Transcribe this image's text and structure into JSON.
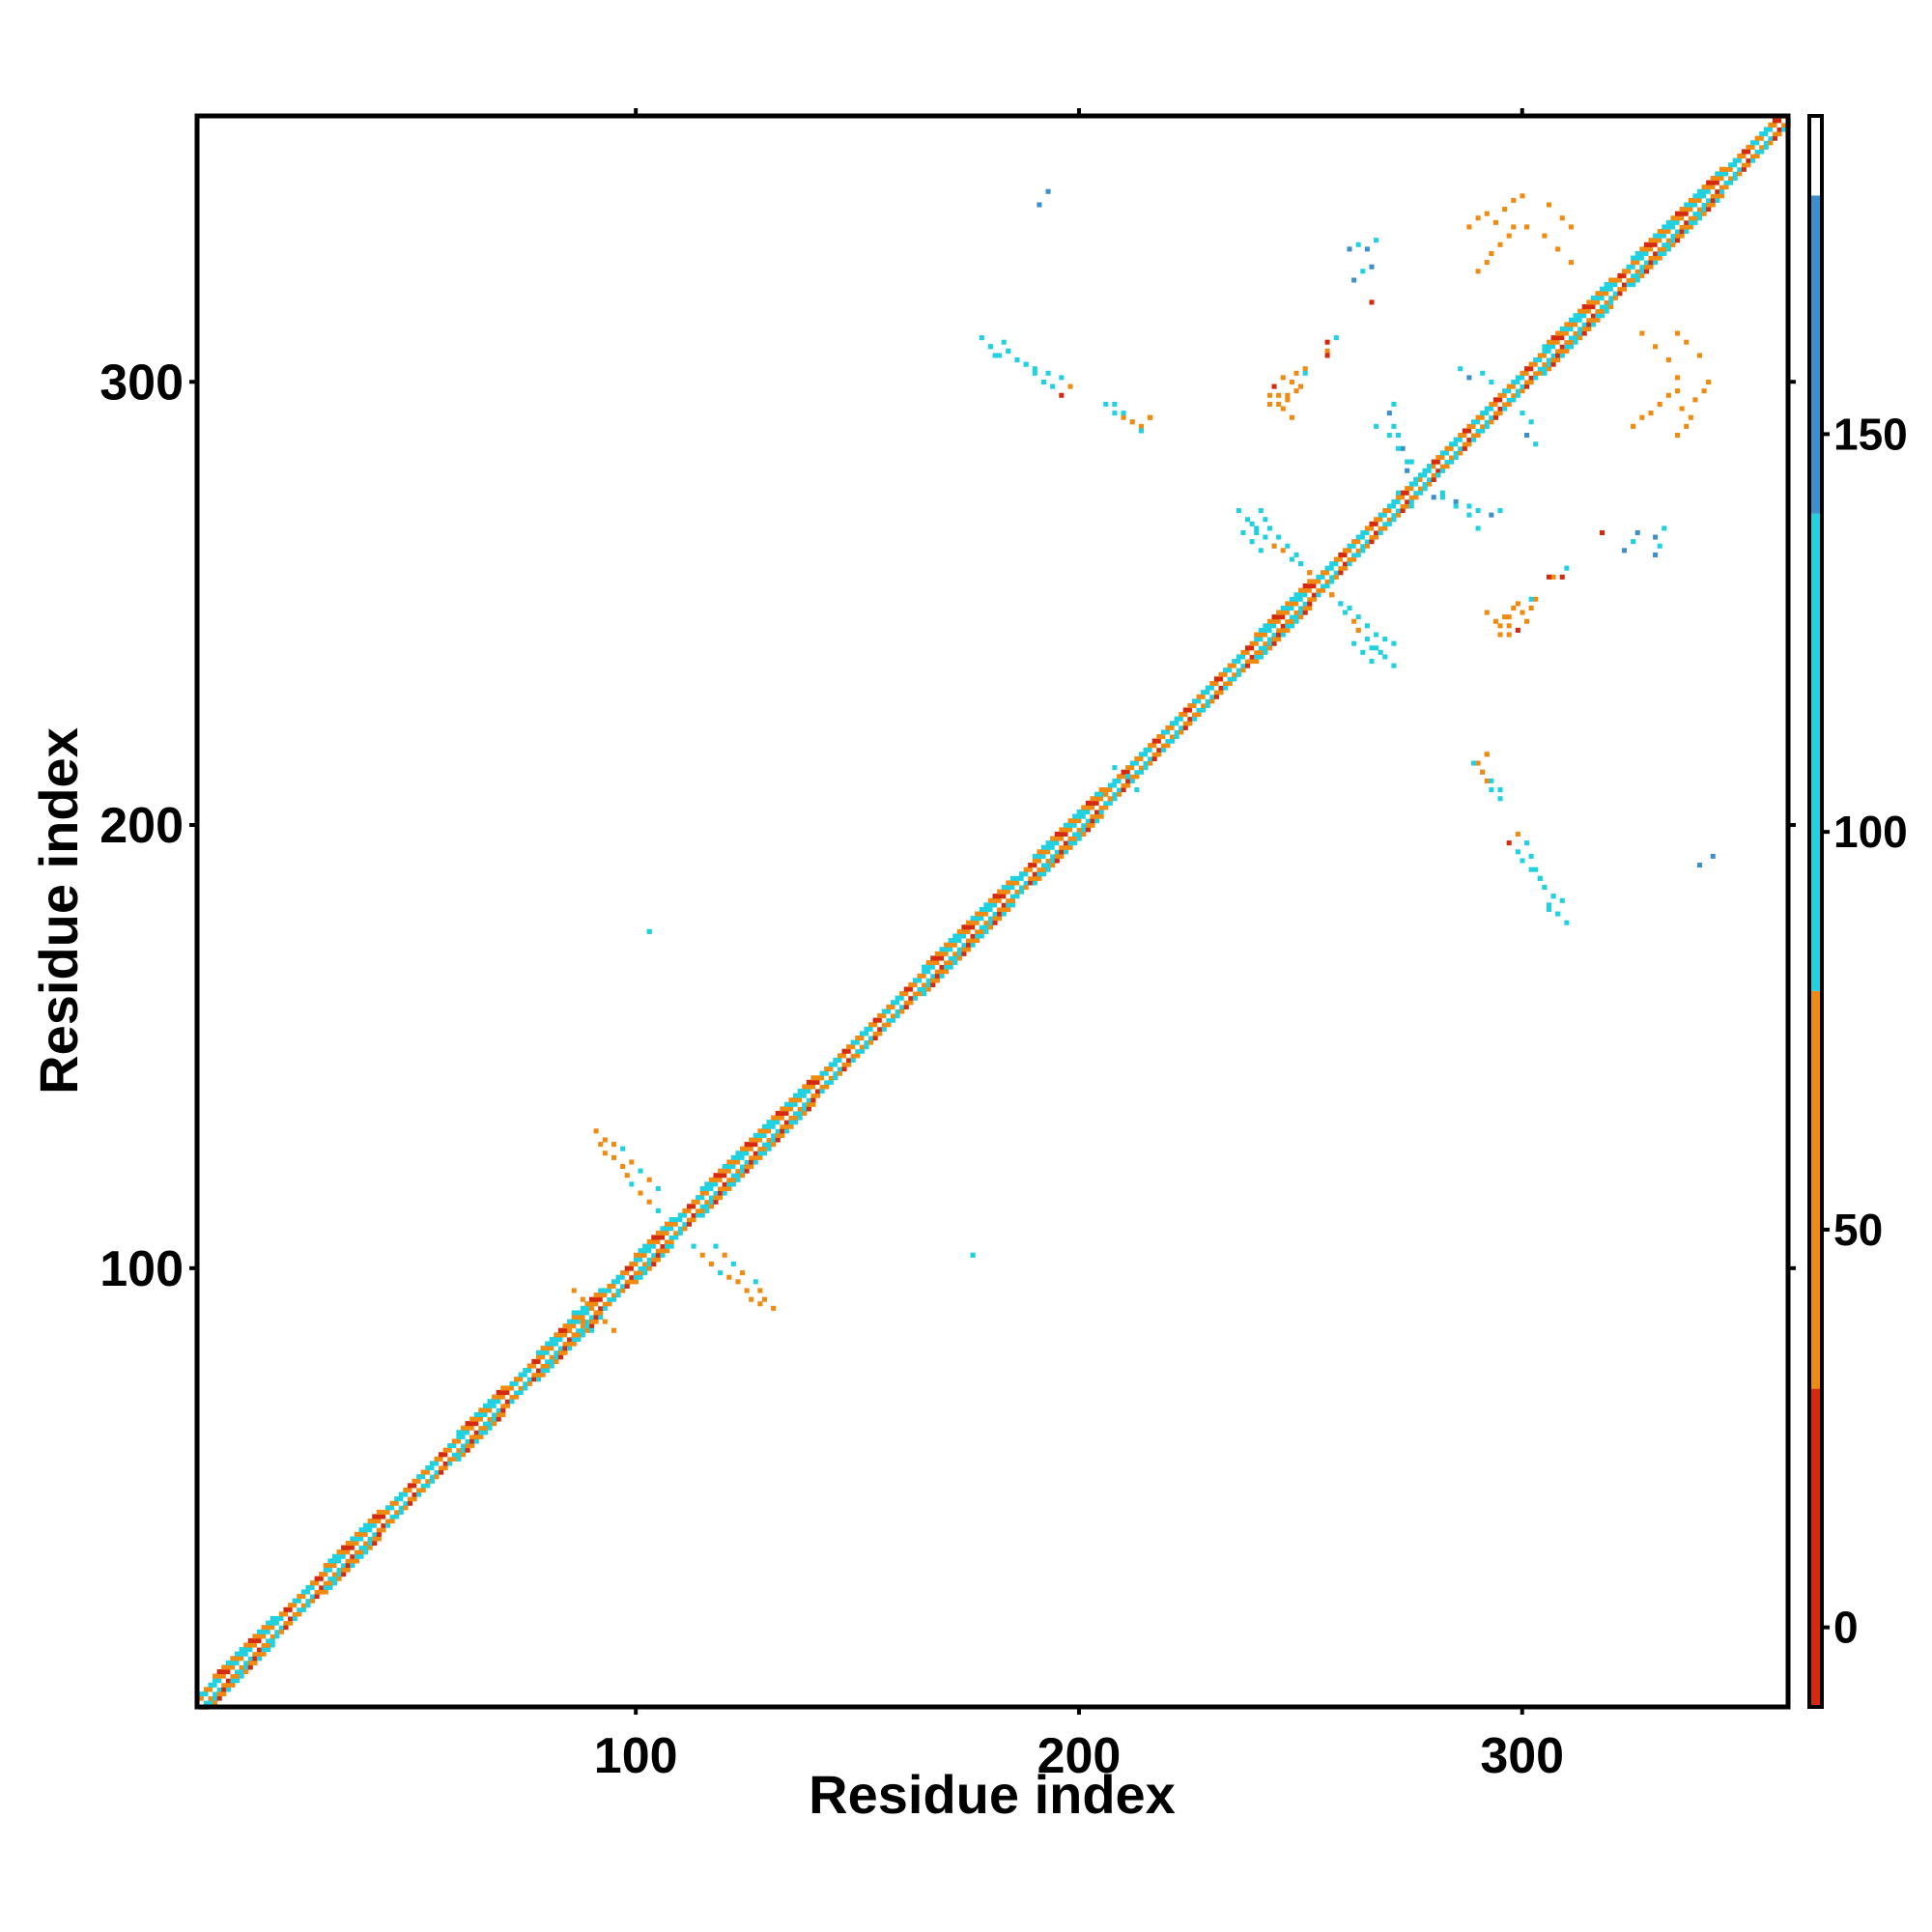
{
  "chart_data": {
    "type": "heatmap",
    "title": "",
    "xlabel": "Residue index",
    "ylabel": "Residue index",
    "xlim": [
      1,
      360
    ],
    "ylim": [
      1,
      360
    ],
    "x_ticks": [
      100,
      200,
      300
    ],
    "y_ticks": [
      100,
      200,
      300
    ],
    "x_tick_labels": [
      "100",
      "200",
      "300"
    ],
    "y_tick_labels": [
      "100",
      "200",
      "300"
    ],
    "colorbar": {
      "range": [
        -10,
        190
      ],
      "ticks": [
        0,
        50,
        100,
        150
      ],
      "tick_labels": [
        "0",
        "50",
        "100",
        "150"
      ],
      "segments": [
        {
          "from": -10,
          "to": 30,
          "color": "#d62a10"
        },
        {
          "from": 30,
          "to": 80,
          "color": "#f08a10"
        },
        {
          "from": 80,
          "to": 140,
          "color": "#22d1e0"
        },
        {
          "from": 140,
          "to": 180,
          "color": "#3d8fcc"
        },
        {
          "from": 180,
          "to": 190,
          "color": "#ffffff"
        }
      ]
    },
    "diagonal_band": {
      "from": 1,
      "to": 360,
      "value_pattern": [
        120,
        60,
        20,
        60,
        110,
        50,
        130
      ],
      "helix_segments": [
        [
          5,
          18
        ],
        [
          30,
          42
        ],
        [
          60,
          70
        ],
        [
          78,
          92
        ],
        [
          100,
          108
        ],
        [
          115,
          140
        ],
        [
          165,
          185
        ],
        [
          190,
          205
        ],
        [
          240,
          252
        ],
        [
          305,
          320
        ],
        [
          325,
          345
        ]
      ]
    },
    "contacts": [
      {
        "x": 91,
        "y": 131,
        "value": 60
      },
      {
        "x": 93,
        "y": 129,
        "value": 65
      },
      {
        "x": 95,
        "y": 128,
        "value": 60
      },
      {
        "x": 97,
        "y": 127,
        "value": 100
      },
      {
        "x": 99,
        "y": 124,
        "value": 60
      },
      {
        "x": 101,
        "y": 122,
        "value": 100
      },
      {
        "x": 103,
        "y": 120,
        "value": 60
      },
      {
        "x": 105,
        "y": 118,
        "value": 100
      },
      {
        "x": 113,
        "y": 105,
        "value": 110
      },
      {
        "x": 115,
        "y": 103,
        "value": 60
      },
      {
        "x": 117,
        "y": 101,
        "value": 60
      },
      {
        "x": 119,
        "y": 99,
        "value": 100
      },
      {
        "x": 121,
        "y": 98,
        "value": 60
      },
      {
        "x": 123,
        "y": 97,
        "value": 60
      },
      {
        "x": 125,
        "y": 95,
        "value": 60
      },
      {
        "x": 126,
        "y": 93,
        "value": 60
      },
      {
        "x": 128,
        "y": 92,
        "value": 60
      },
      {
        "x": 86,
        "y": 95,
        "value": 60
      },
      {
        "x": 88,
        "y": 93,
        "value": 55
      },
      {
        "x": 90,
        "y": 91,
        "value": 60
      },
      {
        "x": 88,
        "y": 88,
        "value": 60
      },
      {
        "x": 90,
        "y": 86,
        "value": 110
      },
      {
        "x": 85,
        "y": 86,
        "value": 40
      },
      {
        "x": 103,
        "y": 176,
        "value": 110
      },
      {
        "x": 176,
        "y": 103,
        "value": 110
      },
      {
        "x": 193,
        "y": 343,
        "value": 150
      },
      {
        "x": 178,
        "y": 310,
        "value": 110
      },
      {
        "x": 180,
        "y": 308,
        "value": 120
      },
      {
        "x": 182,
        "y": 306,
        "value": 110
      },
      {
        "x": 184,
        "y": 307,
        "value": 120
      },
      {
        "x": 186,
        "y": 305,
        "value": 110
      },
      {
        "x": 188,
        "y": 304,
        "value": 120
      },
      {
        "x": 190,
        "y": 303,
        "value": 110
      },
      {
        "x": 193,
        "y": 302,
        "value": 110
      },
      {
        "x": 196,
        "y": 301,
        "value": 110
      },
      {
        "x": 198,
        "y": 299,
        "value": 60
      },
      {
        "x": 206,
        "y": 295,
        "value": 110
      },
      {
        "x": 208,
        "y": 293,
        "value": 110
      },
      {
        "x": 210,
        "y": 292,
        "value": 60
      },
      {
        "x": 212,
        "y": 291,
        "value": 110
      },
      {
        "x": 214,
        "y": 290,
        "value": 60
      },
      {
        "x": 216,
        "y": 292,
        "value": 60
      },
      {
        "x": 261,
        "y": 330,
        "value": 150
      },
      {
        "x": 263,
        "y": 331,
        "value": 110
      },
      {
        "x": 265,
        "y": 330,
        "value": 150
      },
      {
        "x": 267,
        "y": 332,
        "value": 110
      },
      {
        "x": 243,
        "y": 297,
        "value": 60
      },
      {
        "x": 244,
        "y": 299,
        "value": 20
      },
      {
        "x": 246,
        "y": 301,
        "value": 60
      },
      {
        "x": 248,
        "y": 300,
        "value": 60
      },
      {
        "x": 245,
        "y": 295,
        "value": 55
      },
      {
        "x": 247,
        "y": 297,
        "value": 60
      },
      {
        "x": 249,
        "y": 302,
        "value": 60
      },
      {
        "x": 251,
        "y": 303,
        "value": 50
      },
      {
        "x": 256,
        "y": 307,
        "value": 60
      },
      {
        "x": 258,
        "y": 310,
        "value": 110
      },
      {
        "x": 266,
        "y": 318,
        "value": 20
      },
      {
        "x": 288,
        "y": 335,
        "value": 60
      },
      {
        "x": 290,
        "y": 337,
        "value": 60
      },
      {
        "x": 292,
        "y": 338,
        "value": 55
      },
      {
        "x": 294,
        "y": 336,
        "value": 60
      },
      {
        "x": 296,
        "y": 339,
        "value": 60
      },
      {
        "x": 298,
        "y": 341,
        "value": 60
      },
      {
        "x": 300,
        "y": 342,
        "value": 60
      },
      {
        "x": 306,
        "y": 340,
        "value": 60
      },
      {
        "x": 309,
        "y": 337,
        "value": 60
      },
      {
        "x": 311,
        "y": 335,
        "value": 60
      },
      {
        "x": 325,
        "y": 290,
        "value": 60
      },
      {
        "x": 327,
        "y": 292,
        "value": 55
      },
      {
        "x": 329,
        "y": 293,
        "value": 60
      },
      {
        "x": 331,
        "y": 295,
        "value": 60
      },
      {
        "x": 333,
        "y": 297,
        "value": 60
      },
      {
        "x": 335,
        "y": 298,
        "value": 60
      },
      {
        "x": 327,
        "y": 311,
        "value": 60
      },
      {
        "x": 330,
        "y": 308,
        "value": 60
      },
      {
        "x": 333,
        "y": 305,
        "value": 60
      },
      {
        "x": 335,
        "y": 301,
        "value": 60
      },
      {
        "x": 300,
        "y": 293,
        "value": 110
      },
      {
        "x": 302,
        "y": 291,
        "value": 110
      },
      {
        "x": 301,
        "y": 288,
        "value": 150
      },
      {
        "x": 303,
        "y": 286,
        "value": 110
      },
      {
        "x": 282,
        "y": 275,
        "value": 110
      },
      {
        "x": 285,
        "y": 273,
        "value": 150
      },
      {
        "x": 288,
        "y": 272,
        "value": 110
      },
      {
        "x": 290,
        "y": 271,
        "value": 110
      },
      {
        "x": 293,
        "y": 270,
        "value": 150
      },
      {
        "x": 295,
        "y": 271,
        "value": 110
      },
      {
        "x": 323,
        "y": 262,
        "value": 150
      },
      {
        "x": 325,
        "y": 264,
        "value": 110
      },
      {
        "x": 326,
        "y": 266,
        "value": 150
      },
      {
        "x": 306,
        "y": 256,
        "value": 20
      },
      {
        "x": 309,
        "y": 256,
        "value": 20
      },
      {
        "x": 302,
        "y": 251,
        "value": 110
      },
      {
        "x": 292,
        "y": 248,
        "value": 60
      },
      {
        "x": 294,
        "y": 246,
        "value": 60
      },
      {
        "x": 296,
        "y": 247,
        "value": 55
      },
      {
        "x": 298,
        "y": 249,
        "value": 60
      },
      {
        "x": 295,
        "y": 243,
        "value": 60
      },
      {
        "x": 297,
        "y": 245,
        "value": 60
      },
      {
        "x": 299,
        "y": 250,
        "value": 60
      },
      {
        "x": 289,
        "y": 214,
        "value": 110
      },
      {
        "x": 291,
        "y": 212,
        "value": 60
      },
      {
        "x": 293,
        "y": 210,
        "value": 110
      },
      {
        "x": 295,
        "y": 208,
        "value": 110
      },
      {
        "x": 292,
        "y": 216,
        "value": 60
      },
      {
        "x": 297,
        "y": 196,
        "value": 20
      },
      {
        "x": 299,
        "y": 194,
        "value": 110
      },
      {
        "x": 300,
        "y": 192,
        "value": 110
      },
      {
        "x": 302,
        "y": 190,
        "value": 110
      },
      {
        "x": 304,
        "y": 188,
        "value": 120
      },
      {
        "x": 305,
        "y": 186,
        "value": 110
      },
      {
        "x": 307,
        "y": 184,
        "value": 120
      },
      {
        "x": 309,
        "y": 183,
        "value": 110
      },
      {
        "x": 306,
        "y": 181,
        "value": 110
      },
      {
        "x": 308,
        "y": 180,
        "value": 110
      },
      {
        "x": 340,
        "y": 191,
        "value": 150
      },
      {
        "x": 236,
        "y": 271,
        "value": 120
      },
      {
        "x": 238,
        "y": 269,
        "value": 110
      },
      {
        "x": 240,
        "y": 267,
        "value": 120
      },
      {
        "x": 242,
        "y": 265,
        "value": 110
      },
      {
        "x": 244,
        "y": 263,
        "value": 110
      },
      {
        "x": 246,
        "y": 262,
        "value": 60
      },
      {
        "x": 248,
        "y": 260,
        "value": 110
      },
      {
        "x": 250,
        "y": 259,
        "value": 110
      },
      {
        "x": 252,
        "y": 257,
        "value": 60
      },
      {
        "x": 237,
        "y": 266,
        "value": 110
      },
      {
        "x": 239,
        "y": 264,
        "value": 120
      },
      {
        "x": 241,
        "y": 262,
        "value": 110
      },
      {
        "x": 257,
        "y": 252,
        "value": 60
      },
      {
        "x": 259,
        "y": 250,
        "value": 110
      },
      {
        "x": 261,
        "y": 249,
        "value": 110
      },
      {
        "x": 263,
        "y": 247,
        "value": 120
      },
      {
        "x": 265,
        "y": 245,
        "value": 110
      },
      {
        "x": 267,
        "y": 243,
        "value": 110
      },
      {
        "x": 269,
        "y": 242,
        "value": 120
      },
      {
        "x": 271,
        "y": 241,
        "value": 110
      },
      {
        "x": 263,
        "y": 244,
        "value": 60
      },
      {
        "x": 266,
        "y": 240,
        "value": 110
      },
      {
        "x": 268,
        "y": 239,
        "value": 120
      },
      {
        "x": 267,
        "y": 290,
        "value": 110
      },
      {
        "x": 270,
        "y": 288,
        "value": 110
      },
      {
        "x": 272,
        "y": 285,
        "value": 110
      },
      {
        "x": 274,
        "y": 282,
        "value": 110
      },
      {
        "x": 276,
        "y": 278,
        "value": 120
      },
      {
        "x": 278,
        "y": 276,
        "value": 110
      },
      {
        "x": 280,
        "y": 274,
        "value": 150
      },
      {
        "x": 275,
        "y": 272,
        "value": 110
      },
      {
        "x": 279,
        "y": 281,
        "value": 120
      },
      {
        "x": 211,
        "y": 211,
        "value": 110
      },
      {
        "x": 207,
        "y": 206,
        "value": 60
      },
      {
        "x": 213,
        "y": 208,
        "value": 110
      }
    ]
  }
}
